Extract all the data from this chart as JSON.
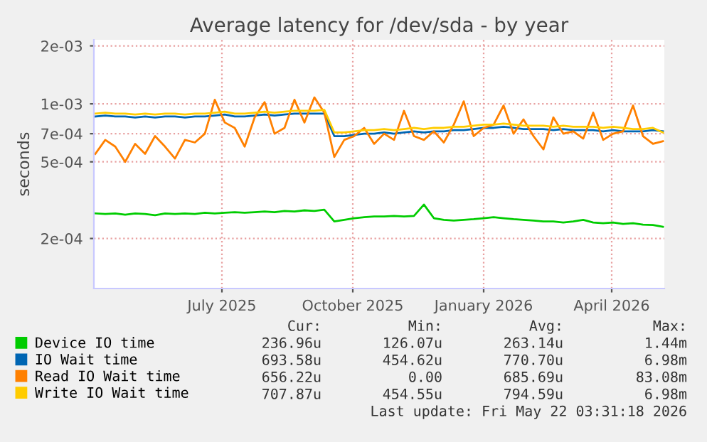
{
  "chart_data": {
    "type": "line",
    "title": "Average latency for /dev/sda - by year",
    "ylabel": "seconds",
    "log": "y",
    "xlim": [
      "2025-04-16",
      "2026-05-22"
    ],
    "xticks": [
      {
        "value": "2025-07-15",
        "label": "July 2025"
      },
      {
        "value": "2025-10-15",
        "label": "October 2025"
      },
      {
        "value": "2026-01-15",
        "label": "January 2026"
      },
      {
        "value": "2026-04-15",
        "label": "April 2026"
      }
    ],
    "ylim": [
      0.00011,
      0.00215
    ],
    "yticks": [
      {
        "value": 0.0002,
        "label": "2e-04"
      },
      {
        "value": 0.0005,
        "label": "5e-04"
      },
      {
        "value": 0.0007,
        "label": "7e-04"
      },
      {
        "value": 0.001,
        "label": "1e-03"
      },
      {
        "value": 0.002,
        "label": "2e-03"
      }
    ],
    "grid": true,
    "legend": "bottom",
    "marker": "none",
    "line_style": "solid",
    "x": [
      "2025-04-17",
      "2025-04-24",
      "2025-05-01",
      "2025-05-08",
      "2025-05-15",
      "2025-05-22",
      "2025-05-29",
      "2025-06-05",
      "2025-06-12",
      "2025-06-19",
      "2025-06-26",
      "2025-07-03",
      "2025-07-10",
      "2025-07-17",
      "2025-07-24",
      "2025-07-31",
      "2025-08-07",
      "2025-08-14",
      "2025-08-21",
      "2025-08-28",
      "2025-09-04",
      "2025-09-11",
      "2025-09-18",
      "2025-09-25",
      "2025-10-02",
      "2025-10-09",
      "2025-10-16",
      "2025-10-23",
      "2025-10-30",
      "2025-11-06",
      "2025-11-13",
      "2025-11-20",
      "2025-11-27",
      "2025-12-04",
      "2025-12-11",
      "2025-12-18",
      "2025-12-25",
      "2026-01-01",
      "2026-01-08",
      "2026-01-15",
      "2026-01-22",
      "2026-01-29",
      "2026-02-05",
      "2026-02-12",
      "2026-02-19",
      "2026-02-26",
      "2026-03-05",
      "2026-03-12",
      "2026-03-19",
      "2026-03-26",
      "2026-04-02",
      "2026-04-09",
      "2026-04-16",
      "2026-04-23",
      "2026-04-30",
      "2026-05-07",
      "2026-05-14",
      "2026-05-21"
    ],
    "series": [
      {
        "name": "Device IO time",
        "color": "#00cc00",
        "values": [
          0.00027,
          0.000268,
          0.00027,
          0.000266,
          0.00027,
          0.000268,
          0.000264,
          0.00027,
          0.000268,
          0.00027,
          0.000268,
          0.000272,
          0.00027,
          0.000272,
          0.000274,
          0.000272,
          0.000274,
          0.000276,
          0.000274,
          0.000278,
          0.000276,
          0.00028,
          0.000278,
          0.000282,
          0.000245,
          0.00025,
          0.000255,
          0.000258,
          0.00026,
          0.00026,
          0.000262,
          0.00026,
          0.000262,
          0.0003,
          0.000255,
          0.00025,
          0.000248,
          0.00025,
          0.000252,
          0.000255,
          0.000258,
          0.000255,
          0.000252,
          0.00025,
          0.000248,
          0.000245,
          0.000245,
          0.000242,
          0.000245,
          0.00025,
          0.000242,
          0.00024,
          0.000242,
          0.000238,
          0.00024,
          0.000236,
          0.000235,
          0.00023
        ]
      },
      {
        "name": "IO Wait time",
        "color": "#0066b3",
        "values": [
          0.00086,
          0.00087,
          0.00086,
          0.00086,
          0.00085,
          0.00086,
          0.00085,
          0.00086,
          0.00086,
          0.00085,
          0.00086,
          0.00086,
          0.00087,
          0.00088,
          0.00086,
          0.00086,
          0.00087,
          0.00088,
          0.00087,
          0.00088,
          0.00089,
          0.00089,
          0.00089,
          0.00089,
          0.00068,
          0.00068,
          0.00069,
          0.0007,
          0.0007,
          0.00071,
          0.0007,
          0.00071,
          0.00072,
          0.00071,
          0.00072,
          0.00072,
          0.00073,
          0.00073,
          0.00074,
          0.00075,
          0.00075,
          0.00076,
          0.00075,
          0.00074,
          0.00074,
          0.00074,
          0.00073,
          0.00074,
          0.00073,
          0.00073,
          0.00073,
          0.00072,
          0.00073,
          0.00072,
          0.00072,
          0.00072,
          0.00073,
          0.00072
        ]
      },
      {
        "name": "Read IO Wait time",
        "color": "#ff8000",
        "values": [
          0.00055,
          0.00065,
          0.0006,
          0.0005,
          0.00062,
          0.00055,
          0.00068,
          0.0006,
          0.00052,
          0.00065,
          0.00063,
          0.0007,
          0.00105,
          0.0008,
          0.00075,
          0.0006,
          0.00085,
          0.00102,
          0.0007,
          0.00075,
          0.00105,
          0.0008,
          0.00108,
          0.0009,
          0.00053,
          0.00065,
          0.00068,
          0.00075,
          0.00062,
          0.0007,
          0.00065,
          0.00092,
          0.00068,
          0.00065,
          0.00072,
          0.00063,
          0.00078,
          0.00103,
          0.00068,
          0.00075,
          0.00078,
          0.00098,
          0.0007,
          0.00083,
          0.00068,
          0.00058,
          0.00085,
          0.0007,
          0.00072,
          0.00066,
          0.0009,
          0.00065,
          0.0007,
          0.00072,
          0.00098,
          0.00068,
          0.00062,
          0.00064
        ]
      },
      {
        "name": "Write IO Wait time",
        "color": "#ffcc00",
        "values": [
          0.00089,
          0.0009,
          0.00089,
          0.00089,
          0.00088,
          0.00089,
          0.00088,
          0.00089,
          0.00089,
          0.00088,
          0.00089,
          0.00089,
          0.0009,
          0.00091,
          0.00089,
          0.00089,
          0.0009,
          0.00091,
          0.0009,
          0.00091,
          0.00092,
          0.00092,
          0.00092,
          0.00093,
          0.00071,
          0.00071,
          0.00072,
          0.00073,
          0.00073,
          0.00074,
          0.00073,
          0.00074,
          0.00075,
          0.00074,
          0.00075,
          0.00075,
          0.00076,
          0.00076,
          0.00077,
          0.00078,
          0.00078,
          0.00079,
          0.00078,
          0.00077,
          0.00077,
          0.00077,
          0.00076,
          0.00077,
          0.00076,
          0.00076,
          0.00076,
          0.00075,
          0.00076,
          0.00075,
          0.00074,
          0.00074,
          0.00075,
          0.00071
        ]
      }
    ],
    "annotations": [
      "Cur:",
      "Min:",
      "Avg:",
      "Max:",
      "236.96u",
      "126.07u",
      "263.14u",
      "1.44m",
      "693.58u",
      "454.62u",
      "770.70u",
      "6.98m",
      "656.22u",
      "0.00",
      "685.69u",
      "83.08m",
      "707.87u",
      "454.55u",
      "794.59u",
      "6.98m",
      "Last update: Fri May 22 03:31:18 2026"
    ]
  }
}
